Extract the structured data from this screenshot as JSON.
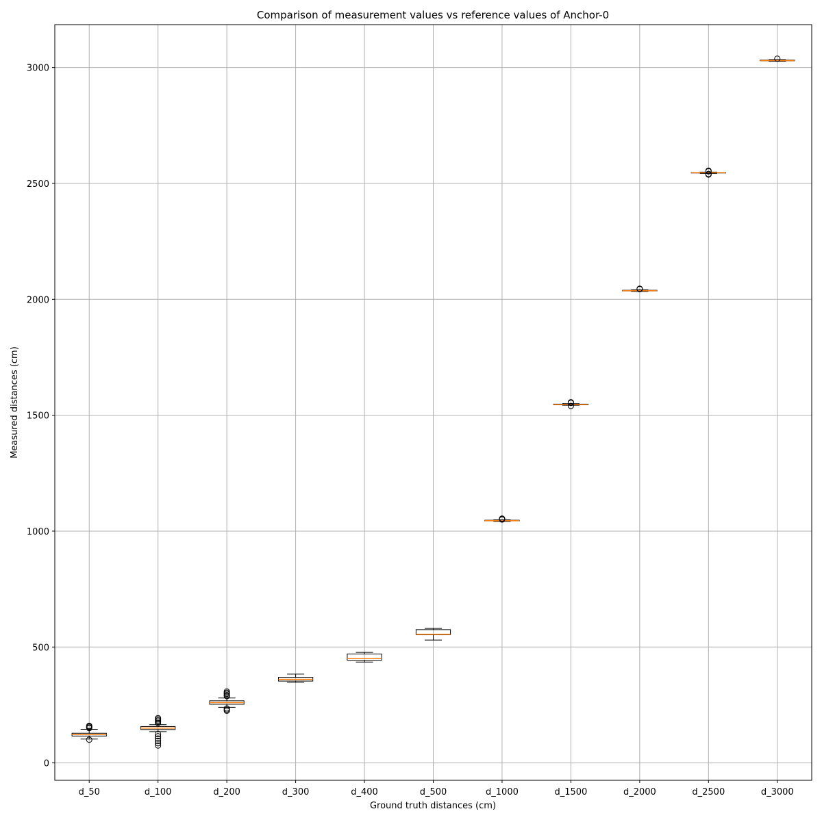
{
  "chart_data": {
    "type": "boxplot",
    "title": "Comparison of measurement values vs reference values of Anchor-0",
    "xlabel": "Ground truth distances (cm)",
    "ylabel": "Measured distances (cm)",
    "ylim": [
      -75,
      3185
    ],
    "yticks": [
      0,
      500,
      1000,
      1500,
      2000,
      2500,
      3000
    ],
    "grid": true,
    "categories": [
      "d_50",
      "d_100",
      "d_200",
      "d_300",
      "d_400",
      "d_500",
      "d_1000",
      "d_1500",
      "d_2000",
      "d_2500",
      "d_3000"
    ],
    "boxes": [
      {
        "whisker_low": 103,
        "q1": 116,
        "median": 122,
        "q3": 128,
        "whisker_high": 145,
        "fliers": [
          100,
          150,
          153,
          157,
          160
        ]
      },
      {
        "whisker_low": 135,
        "q1": 144,
        "median": 150,
        "q3": 157,
        "whisker_high": 165,
        "fliers": [
          75,
          85,
          95,
          105,
          115,
          125,
          172,
          178,
          183,
          188,
          193
        ]
      },
      {
        "whisker_low": 240,
        "q1": 253,
        "median": 260,
        "q3": 268,
        "whisker_high": 280,
        "fliers": [
          225,
          230,
          235,
          288,
          293,
          298,
          303,
          308
        ]
      },
      {
        "whisker_low": 348,
        "q1": 353,
        "median": 360,
        "q3": 369,
        "whisker_high": 383,
        "fliers": []
      },
      {
        "whisker_low": 435,
        "q1": 443,
        "median": 450,
        "q3": 470,
        "whisker_high": 477,
        "fliers": []
      },
      {
        "whisker_low": 530,
        "q1": 553,
        "median": 555,
        "q3": 575,
        "whisker_high": 580,
        "fliers": []
      },
      {
        "whisker_low": 1042,
        "q1": 1044,
        "median": 1045,
        "q3": 1047,
        "whisker_high": 1049,
        "fliers": [
          1050,
          1052,
          1054
        ]
      },
      {
        "whisker_low": 1543,
        "q1": 1545,
        "median": 1546,
        "q3": 1548,
        "whisker_high": 1550,
        "fliers": [
          1540,
          1553,
          1556
        ]
      },
      {
        "whisker_low": 2034,
        "q1": 2036,
        "median": 2037,
        "q3": 2039,
        "whisker_high": 2041,
        "fliers": [
          2044,
          2046
        ]
      },
      {
        "whisker_low": 2543,
        "q1": 2545,
        "median": 2546,
        "q3": 2547,
        "whisker_high": 2549,
        "fliers": [
          2538,
          2541,
          2552,
          2555
        ]
      },
      {
        "whisker_low": 3027,
        "q1": 3029,
        "median": 3030,
        "q3": 3032,
        "whisker_high": 3034,
        "fliers": [
          3038
        ]
      }
    ],
    "colors": {
      "box": "#000000",
      "median": "#ff7f0e",
      "grid": "#b0b0b0",
      "flier": "#000000"
    }
  }
}
